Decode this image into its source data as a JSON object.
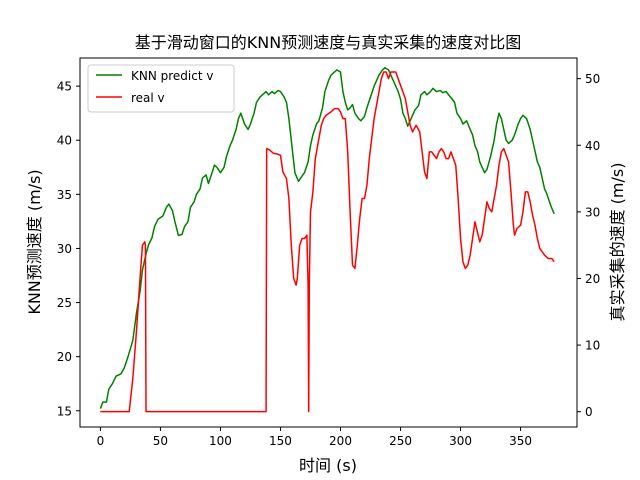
{
  "chart_data": {
    "type": "line",
    "title": "基于滑动窗口的KNN预测速度与真实采集的速度对比图",
    "xlabel": "时间 (s)",
    "ylabel_left": "KNN预测速度 (m/s)",
    "ylabel_right": "真实采集的速度 (m/s)",
    "xlim": [
      -17,
      397
    ],
    "ylim_left": [
      13.5,
      47.6
    ],
    "ylim_right": [
      -2.3,
      53.1
    ],
    "xticks": [
      0,
      50,
      100,
      150,
      200,
      250,
      300,
      350
    ],
    "yticks_left": [
      15,
      20,
      25,
      30,
      35,
      40,
      45
    ],
    "yticks_right": [
      0,
      10,
      20,
      30,
      40,
      50
    ],
    "grid": false,
    "legend_position": "upper-left",
    "series": [
      {
        "name": "KNN predict v",
        "axis": "left",
        "color": "#008000",
        "points": [
          [
            0,
            15.2
          ],
          [
            2,
            15.8
          ],
          [
            5,
            15.8
          ],
          [
            7,
            17
          ],
          [
            10,
            17.5
          ],
          [
            13,
            18.2
          ],
          [
            17,
            18.4
          ],
          [
            20,
            19
          ],
          [
            23,
            20
          ],
          [
            27,
            21.5
          ],
          [
            30,
            24
          ],
          [
            33,
            26
          ],
          [
            35,
            28
          ],
          [
            38,
            29.5
          ],
          [
            40,
            30.3
          ],
          [
            43,
            31
          ],
          [
            45,
            32
          ],
          [
            48,
            32.7
          ],
          [
            52,
            33
          ],
          [
            55,
            33.8
          ],
          [
            57,
            34.1
          ],
          [
            60,
            33.5
          ],
          [
            62,
            32.5
          ],
          [
            65,
            31.2
          ],
          [
            68,
            31.3
          ],
          [
            70,
            32
          ],
          [
            73,
            32.5
          ],
          [
            75,
            33.8
          ],
          [
            78,
            34.3
          ],
          [
            80,
            35
          ],
          [
            83,
            35.5
          ],
          [
            85,
            36.5
          ],
          [
            88,
            36.8
          ],
          [
            90,
            36
          ],
          [
            93,
            37
          ],
          [
            95,
            37.7
          ],
          [
            97,
            37.5
          ],
          [
            100,
            37
          ],
          [
            103,
            37.5
          ],
          [
            105,
            38.5
          ],
          [
            108,
            39.5
          ],
          [
            110,
            40
          ],
          [
            113,
            41
          ],
          [
            115,
            42
          ],
          [
            117,
            42.5
          ],
          [
            120,
            41.5
          ],
          [
            123,
            41
          ],
          [
            125,
            41.5
          ],
          [
            128,
            42.5
          ],
          [
            130,
            43.5
          ],
          [
            133,
            44
          ],
          [
            135,
            44.2
          ],
          [
            138,
            44.5
          ],
          [
            140,
            44.2
          ],
          [
            143,
            44.5
          ],
          [
            145,
            44.3
          ],
          [
            148,
            44.6
          ],
          [
            150,
            44.5
          ],
          [
            153,
            44
          ],
          [
            155,
            43.5
          ],
          [
            157,
            42
          ],
          [
            160,
            39
          ],
          [
            162,
            37
          ],
          [
            165,
            36.2
          ],
          [
            168,
            36.7
          ],
          [
            170,
            37
          ],
          [
            173,
            38
          ],
          [
            175,
            39.5
          ],
          [
            177,
            40.5
          ],
          [
            180,
            41.5
          ],
          [
            182,
            41.8
          ],
          [
            185,
            43
          ],
          [
            187,
            44.5
          ],
          [
            190,
            45.5
          ],
          [
            192,
            46
          ],
          [
            195,
            46.3
          ],
          [
            197,
            46.5
          ],
          [
            200,
            46.3
          ],
          [
            202,
            44.5
          ],
          [
            204,
            43.5
          ],
          [
            206,
            42.8
          ],
          [
            208,
            43
          ],
          [
            210,
            43.3
          ],
          [
            212,
            42.5
          ],
          [
            215,
            42
          ],
          [
            217,
            41.8
          ],
          [
            220,
            42.2
          ],
          [
            222,
            43
          ],
          [
            225,
            44
          ],
          [
            228,
            45
          ],
          [
            230,
            45.5
          ],
          [
            232,
            46
          ],
          [
            235,
            46.5
          ],
          [
            237,
            46.7
          ],
          [
            240,
            46.5
          ],
          [
            242,
            46
          ],
          [
            244,
            45.5
          ],
          [
            246,
            45
          ],
          [
            248,
            44.5
          ],
          [
            250,
            43.8
          ],
          [
            252,
            42.5
          ],
          [
            254,
            42
          ],
          [
            256,
            41.3
          ],
          [
            258,
            41.8
          ],
          [
            260,
            42.3
          ],
          [
            262,
            42.8
          ],
          [
            265,
            43.2
          ],
          [
            267,
            44.2
          ],
          [
            270,
            44.5
          ],
          [
            272,
            44.2
          ],
          [
            275,
            44.5
          ],
          [
            277,
            44.8
          ],
          [
            280,
            44.5
          ],
          [
            283,
            44.6
          ],
          [
            285,
            44.4
          ],
          [
            288,
            44.5
          ],
          [
            290,
            44.2
          ],
          [
            293,
            43.8
          ],
          [
            295,
            43.5
          ],
          [
            297,
            42.5
          ],
          [
            300,
            42
          ],
          [
            302,
            41.5
          ],
          [
            305,
            41.8
          ],
          [
            308,
            41
          ],
          [
            310,
            40.5
          ],
          [
            312,
            39.5
          ],
          [
            314,
            39
          ],
          [
            316,
            38
          ],
          [
            318,
            37.5
          ],
          [
            320,
            37
          ],
          [
            322,
            37.3
          ],
          [
            325,
            38.5
          ],
          [
            328,
            40
          ],
          [
            330,
            41.5
          ],
          [
            332,
            42.5
          ],
          [
            334,
            42
          ],
          [
            336,
            41
          ],
          [
            338,
            40
          ],
          [
            340,
            39.7
          ],
          [
            343,
            40
          ],
          [
            345,
            40.5
          ],
          [
            348,
            41.5
          ],
          [
            350,
            42
          ],
          [
            352,
            42.3
          ],
          [
            355,
            42
          ],
          [
            358,
            41
          ],
          [
            360,
            40
          ],
          [
            362,
            39
          ],
          [
            364,
            38
          ],
          [
            366,
            37.5
          ],
          [
            368,
            36.5
          ],
          [
            370,
            35.5
          ],
          [
            372,
            35
          ],
          [
            375,
            34
          ],
          [
            378,
            33.2
          ]
        ]
      },
      {
        "name": "real v",
        "axis": "right",
        "color": "#ff0000",
        "points": [
          [
            0,
            0
          ],
          [
            24,
            0
          ],
          [
            27,
            5
          ],
          [
            30,
            12
          ],
          [
            33,
            20
          ],
          [
            35,
            25
          ],
          [
            37,
            25.5
          ],
          [
            37.5,
            25
          ],
          [
            38,
            0
          ],
          [
            138,
            0
          ],
          [
            138.5,
            39.5
          ],
          [
            141,
            39.3
          ],
          [
            144,
            38.8
          ],
          [
            147,
            38.7
          ],
          [
            150,
            38.5
          ],
          [
            152,
            36
          ],
          [
            155,
            35
          ],
          [
            157,
            32
          ],
          [
            159,
            25
          ],
          [
            161,
            20
          ],
          [
            163,
            19
          ],
          [
            164,
            20
          ],
          [
            166,
            25
          ],
          [
            168,
            26
          ],
          [
            170,
            26
          ],
          [
            172,
            26.5
          ],
          [
            173,
            19
          ],
          [
            173.5,
            0
          ],
          [
            174,
            19
          ],
          [
            175,
            30
          ],
          [
            177,
            33
          ],
          [
            179,
            38
          ],
          [
            181,
            40
          ],
          [
            184,
            43
          ],
          [
            186,
            44
          ],
          [
            188,
            44.5
          ],
          [
            192,
            45
          ],
          [
            195,
            45.5
          ],
          [
            198,
            45.5
          ],
          [
            200,
            45
          ],
          [
            202,
            44
          ],
          [
            204,
            44
          ],
          [
            206,
            39
          ],
          [
            208,
            30
          ],
          [
            210,
            22
          ],
          [
            212,
            21.5
          ],
          [
            214,
            25
          ],
          [
            216,
            29
          ],
          [
            218,
            32
          ],
          [
            220,
            32
          ],
          [
            222,
            34
          ],
          [
            224,
            38
          ],
          [
            226,
            41
          ],
          [
            228,
            44
          ],
          [
            230,
            46
          ],
          [
            232,
            48
          ],
          [
            234,
            50
          ],
          [
            236,
            51
          ],
          [
            238,
            51
          ],
          [
            240,
            50
          ],
          [
            242,
            51
          ],
          [
            246,
            51
          ],
          [
            248,
            50
          ],
          [
            250,
            49
          ],
          [
            252,
            48
          ],
          [
            254,
            47
          ],
          [
            256,
            45
          ],
          [
            258,
            43
          ],
          [
            260,
            42
          ],
          [
            263,
            43
          ],
          [
            266,
            42
          ],
          [
            268,
            39
          ],
          [
            270,
            36
          ],
          [
            272,
            35
          ],
          [
            274,
            39
          ],
          [
            276,
            39
          ],
          [
            278,
            38.5
          ],
          [
            280,
            38
          ],
          [
            282,
            39
          ],
          [
            284,
            39.5
          ],
          [
            286,
            39
          ],
          [
            288,
            38
          ],
          [
            290,
            38
          ],
          [
            292,
            39
          ],
          [
            294,
            38
          ],
          [
            296,
            37
          ],
          [
            298,
            32
          ],
          [
            300,
            26
          ],
          [
            302,
            22.5
          ],
          [
            304,
            21.5
          ],
          [
            306,
            22
          ],
          [
            308,
            23.5
          ],
          [
            310,
            26
          ],
          [
            312,
            28.5
          ],
          [
            314,
            27
          ],
          [
            316,
            25.5
          ],
          [
            318,
            26.5
          ],
          [
            320,
            29
          ],
          [
            322,
            31.5
          ],
          [
            324,
            30.5
          ],
          [
            326,
            30
          ],
          [
            328,
            32
          ],
          [
            330,
            34
          ],
          [
            332,
            37
          ],
          [
            334,
            39
          ],
          [
            336,
            39.5
          ],
          [
            338,
            38.5
          ],
          [
            340,
            37.5
          ],
          [
            342,
            33
          ],
          [
            344,
            28
          ],
          [
            345,
            26.5
          ],
          [
            347,
            27.5
          ],
          [
            350,
            28
          ],
          [
            352,
            30
          ],
          [
            354,
            33
          ],
          [
            356,
            33
          ],
          [
            358,
            31.5
          ],
          [
            360,
            29.5
          ],
          [
            362,
            28
          ],
          [
            364,
            26
          ],
          [
            366,
            24.5
          ],
          [
            368,
            24
          ],
          [
            370,
            23.5
          ],
          [
            373,
            23
          ],
          [
            376,
            23
          ],
          [
            378,
            22.5
          ]
        ]
      }
    ]
  }
}
